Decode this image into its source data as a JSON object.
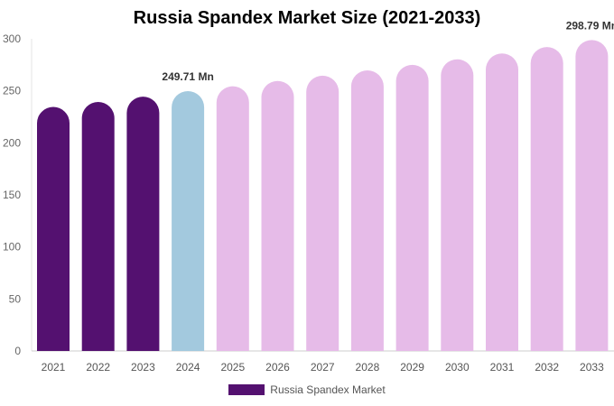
{
  "chart_data": {
    "type": "bar",
    "title": "Russia Spandex Market Size (2021-2033)",
    "categories": [
      "2021",
      "2022",
      "2023",
      "2024",
      "2025",
      "2026",
      "2027",
      "2028",
      "2029",
      "2030",
      "2031",
      "2032",
      "2033"
    ],
    "series": [
      {
        "name": "Russia Spandex Market",
        "values": [
          234.5,
          239.3,
          244.4,
          249.71,
          254.4,
          259.5,
          264.6,
          269.7,
          275.0,
          280.3,
          285.9,
          292.1,
          298.79
        ]
      }
    ],
    "data_labels": [
      {
        "category": "2024",
        "text": "249.71 Mn"
      },
      {
        "category": "2033",
        "text": "298.79 Mn"
      }
    ],
    "bar_colors": {
      "historical": "#541170",
      "current": "#a3c9de",
      "forecast": "#e6bbe8"
    },
    "color_groups": [
      "historical",
      "historical",
      "historical",
      "current",
      "forecast",
      "forecast",
      "forecast",
      "forecast",
      "forecast",
      "forecast",
      "forecast",
      "forecast",
      "forecast"
    ],
    "ylim": [
      0,
      300
    ],
    "yticks": [
      0,
      50,
      100,
      150,
      200,
      250,
      300
    ],
    "xlabel": "",
    "ylabel": "",
    "grid": false,
    "legend": {
      "position": "bottom",
      "label": "Russia Spandex Market",
      "color": "#541170"
    }
  }
}
